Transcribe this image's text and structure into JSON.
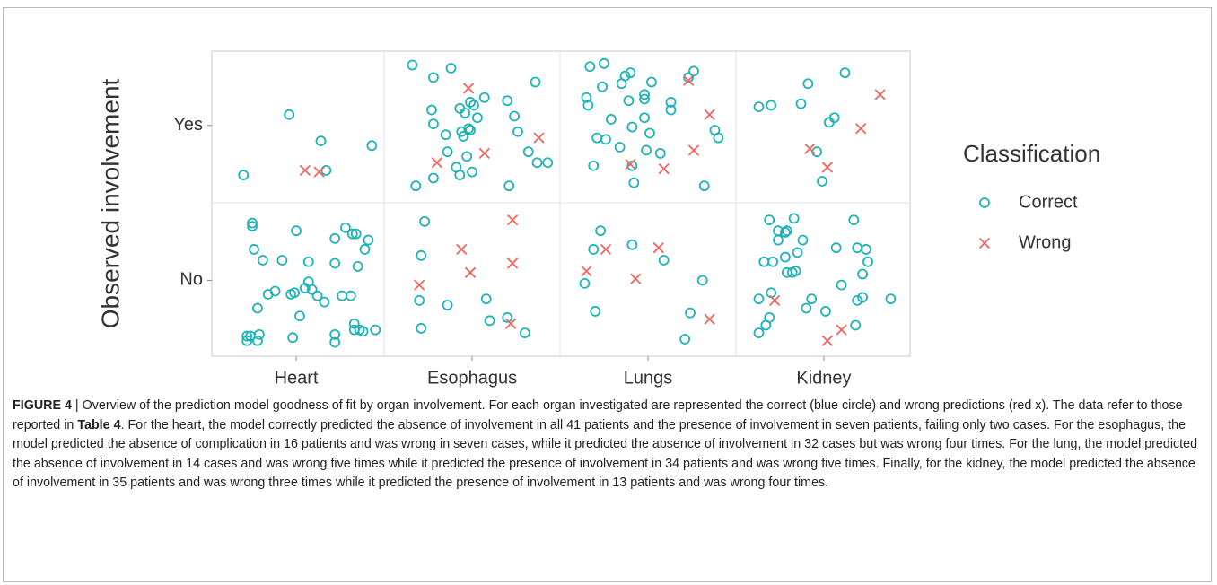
{
  "chart_data": {
    "type": "scatter",
    "y_label": "Observed involvement",
    "legend_title": "Classification",
    "legend": "right",
    "xlim": [
      0.52,
      4.49
    ],
    "ylim": [
      0.51,
      2.48
    ],
    "xticks": [
      {
        "value": 1,
        "label": "Heart"
      },
      {
        "value": 2,
        "label": "Esophagus"
      },
      {
        "value": 3,
        "label": "Lungs"
      },
      {
        "value": 4,
        "label": "Kidney"
      }
    ],
    "yticks": [
      {
        "value": 1,
        "label": "No"
      },
      {
        "value": 2,
        "label": "Yes"
      }
    ],
    "series": [
      {
        "name": "Correct",
        "color": "#1fb3b8",
        "marker": "circle",
        "x": [
          0.7,
          0.96,
          1.14,
          1.17,
          1.43,
          0.75,
          0.75,
          0.76,
          0.81,
          0.78,
          0.84,
          0.88,
          0.92,
          1.0,
          1.02,
          0.97,
          0.99,
          1.05,
          1.07,
          1.09,
          1.07,
          1.12,
          1.16,
          1.22,
          1.22,
          1.28,
          1.32,
          1.34,
          1.41,
          1.39,
          1.35,
          1.26,
          1.31,
          1.33,
          1.33,
          1.36,
          1.45,
          1.38,
          1.22,
          1.22,
          0.98,
          0.72,
          0.74,
          0.79,
          0.72,
          0.78,
          1.66,
          1.78,
          1.88,
          1.77,
          1.78,
          1.85,
          1.93,
          1.96,
          1.99,
          2.01,
          2.07,
          2.03,
          1.98,
          1.94,
          1.97,
          1.91,
          1.86,
          1.78,
          1.68,
          1.93,
          2.0,
          2.2,
          2.24,
          2.26,
          2.36,
          2.32,
          2.37,
          2.43,
          2.21,
          1.99,
          1.95,
          1.73,
          1.71,
          1.7,
          1.86,
          1.71,
          2.08,
          2.1,
          2.2,
          2.3,
          2.67,
          2.75,
          2.74,
          2.65,
          2.66,
          2.79,
          2.71,
          2.76,
          2.84,
          2.91,
          3.01,
          2.98,
          2.98,
          2.98,
          3.02,
          2.87,
          2.89,
          2.91,
          2.92,
          2.99,
          3.07,
          3.13,
          3.13,
          3.26,
          3.23,
          3.38,
          3.4,
          3.32,
          2.69,
          2.9,
          2.85,
          2.73,
          2.69,
          2.64,
          2.7,
          2.91,
          3.09,
          3.31,
          3.24,
          3.21,
          3.63,
          3.7,
          3.87,
          3.91,
          4.03,
          4.06,
          4.12,
          3.96,
          3.99,
          3.69,
          3.74,
          3.74,
          3.78,
          3.79,
          3.83,
          3.88,
          3.85,
          3.78,
          3.79,
          3.82,
          3.84,
          3.71,
          3.66,
          3.63,
          3.7,
          3.69,
          3.67,
          3.63,
          3.93,
          3.9,
          4.01,
          4.1,
          4.07,
          4.17,
          4.19,
          4.24,
          4.22,
          4.25,
          4.19,
          4.22,
          4.18,
          4.38
        ],
        "y": [
          1.68,
          2.07,
          1.9,
          1.71,
          1.87,
          1.37,
          1.35,
          1.2,
          1.13,
          0.82,
          0.91,
          0.93,
          1.13,
          1.32,
          0.77,
          0.91,
          0.92,
          0.95,
          0.99,
          0.94,
          1.12,
          0.9,
          0.86,
          1.27,
          1.11,
          1.34,
          1.3,
          1.3,
          1.26,
          1.2,
          1.09,
          0.9,
          0.9,
          0.72,
          0.68,
          0.68,
          0.68,
          0.67,
          0.65,
          0.6,
          0.63,
          0.64,
          0.64,
          0.65,
          0.61,
          0.61,
          2.39,
          2.31,
          2.37,
          2.1,
          2.01,
          1.94,
          2.11,
          2.08,
          2.15,
          2.13,
          2.18,
          2.05,
          1.98,
          1.96,
          1.8,
          1.73,
          1.83,
          1.66,
          1.61,
          1.68,
          1.7,
          2.16,
          2.06,
          1.96,
          2.28,
          1.83,
          1.76,
          1.76,
          1.61,
          1.97,
          1.93,
          1.38,
          1.16,
          0.87,
          0.84,
          0.69,
          0.88,
          0.74,
          0.76,
          0.66,
          2.38,
          2.4,
          2.25,
          2.18,
          2.13,
          2.04,
          1.92,
          1.91,
          1.86,
          1.99,
          1.95,
          2.05,
          2.17,
          2.2,
          2.28,
          2.32,
          2.16,
          1.74,
          1.63,
          1.84,
          1.82,
          2.15,
          2.1,
          2.35,
          2.31,
          1.97,
          1.92,
          1.61,
          1.74,
          2.34,
          2.27,
          1.32,
          1.2,
          0.98,
          0.8,
          1.23,
          1.13,
          1.0,
          0.79,
          0.62,
          2.12,
          2.13,
          2.14,
          2.27,
          2.02,
          2.05,
          2.34,
          1.83,
          1.64,
          1.39,
          1.32,
          1.26,
          1.31,
          1.32,
          1.4,
          1.26,
          1.18,
          1.15,
          1.05,
          1.05,
          1.06,
          1.12,
          1.12,
          0.88,
          0.92,
          0.76,
          0.71,
          0.66,
          0.88,
          0.82,
          0.8,
          0.97,
          1.21,
          1.39,
          1.21,
          1.2,
          1.04,
          1.12,
          0.87,
          0.89,
          0.71,
          0.88
        ]
      },
      {
        "name": "Wrong",
        "color": "#f0665f",
        "marker": "cross",
        "x": [
          1.05,
          1.13,
          1.98,
          1.8,
          2.07,
          2.38,
          1.7,
          1.94,
          1.99,
          2.23,
          2.23,
          2.22,
          3.23,
          3.35,
          3.26,
          2.9,
          3.09,
          2.65,
          2.76,
          3.06,
          2.93,
          3.35,
          4.32,
          4.21,
          3.92,
          4.02,
          3.72,
          4.02,
          4.1
        ],
        "y": [
          1.71,
          1.7,
          2.24,
          1.76,
          1.82,
          1.92,
          0.97,
          1.2,
          1.05,
          1.39,
          1.11,
          0.72,
          2.29,
          2.07,
          1.84,
          1.75,
          1.72,
          1.06,
          1.2,
          1.21,
          1.01,
          0.75,
          2.2,
          1.98,
          1.85,
          1.73,
          0.87,
          0.61,
          0.68
        ]
      }
    ]
  },
  "caption": [
    "FIGURE 4",
    " | Overview of the prediction model goodness of fit by organ involvement. For each organ investigated are represented the correct (blue circle) and wrong predictions (red x). The data refer to those reported in ",
    "Table 4",
    ". For the heart, the model correctly predicted the absence of involvement in all 41 patients and the presence of involvement in seven patients, failing only two cases. For the esophagus, the model predicted the absence of complication in 16 patients and was wrong in seven cases, while it predicted the absence of involvement in 32 cases but was wrong four times. For the lung, the model predicted the absence of involvement in 14 cases and was wrong five times while it predicted the presence of involvement in 34 patients and was wrong five times. Finally, for the kidney, the model predicted the absence of involvement in 35 patients and was wrong three times while it predicted the presence of involvement in 13 patients and was wrong four times."
  ]
}
